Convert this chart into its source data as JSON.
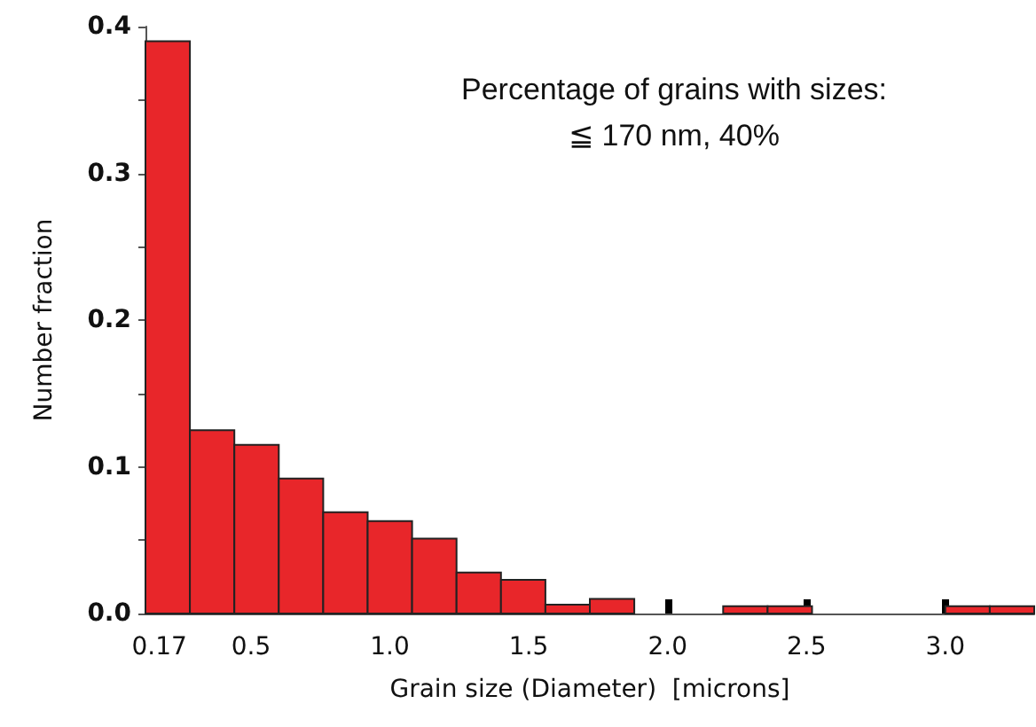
{
  "chart_data": {
    "type": "histogram",
    "xlabel": "Grain size (Diameter)  [microns]",
    "ylabel": "Number fraction",
    "annotations": [
      "Percentage of grains with sizes:",
      "≦ 170 nm, 40%"
    ],
    "bins": [
      0.12,
      0.28,
      0.44,
      0.6,
      0.76,
      0.92,
      1.08,
      1.24,
      1.4,
      1.56,
      1.72,
      1.88,
      2.04,
      2.2,
      2.36,
      2.52,
      2.68,
      2.84,
      3.0,
      3.16,
      3.32
    ],
    "values": [
      0.39,
      0.125,
      0.115,
      0.092,
      0.069,
      0.063,
      0.051,
      0.028,
      0.023,
      0.006,
      0.01,
      0,
      0,
      0.005,
      0.005,
      0,
      0,
      0,
      0.005,
      0.005
    ],
    "color": "#e8262a",
    "xlim": [
      0.12,
      3.32
    ],
    "xticks": [
      0.17,
      {
        "value": 0.5,
        "label": "0.5"
      },
      {
        "value": 1.0,
        "label": "1.0"
      },
      {
        "value": 1.5,
        "label": "1.5"
      },
      {
        "value": 2.0,
        "label": "2.0"
      },
      {
        "value": 2.5,
        "label": "2.5"
      },
      {
        "value": 3.0,
        "label": "3.0"
      }
    ],
    "ylim": [
      0,
      0.4
    ],
    "yticks": [
      {
        "value": 0,
        "label": "0.0"
      },
      {
        "value": 0.05,
        "label": null
      },
      0.1,
      {
        "value": 0.15,
        "label": null
      },
      0.2,
      {
        "value": 0.25,
        "label": null
      },
      0.3,
      {
        "value": 0.35,
        "label": null
      },
      0.4
    ],
    "grid": false
  }
}
